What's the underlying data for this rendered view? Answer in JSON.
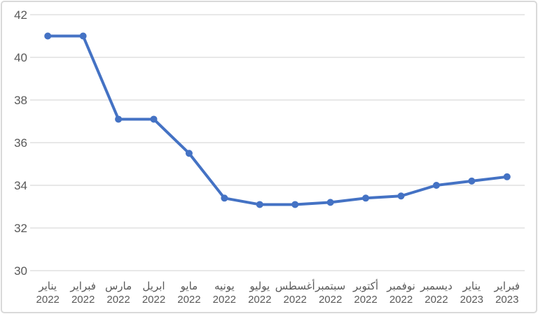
{
  "style": {
    "background": "#FFFFFF",
    "frame_border_color": "#D9D9D9",
    "gridline_color": "#D9D9D9",
    "axis_text_color": "#595959",
    "series_color": "#4472C4"
  },
  "chart_data": {
    "type": "line",
    "title": "",
    "legend": "none",
    "grid": "horizontal",
    "marker": "circle",
    "ylim": [
      30,
      42
    ],
    "y_ticks": [
      42,
      40,
      38,
      36,
      34,
      32,
      30
    ],
    "categories": [
      {
        "month": "يناير",
        "year": "2022"
      },
      {
        "month": "فبراير",
        "year": "2022"
      },
      {
        "month": "مارس",
        "year": "2022"
      },
      {
        "month": "ابريل",
        "year": "2022"
      },
      {
        "month": "مايو",
        "year": "2022"
      },
      {
        "month": "يونيه",
        "year": "2022"
      },
      {
        "month": "يوليو",
        "year": "2022"
      },
      {
        "month": "أغسطس",
        "year": "2022"
      },
      {
        "month": "سبتمبر",
        "year": "2022"
      },
      {
        "month": "أكتوبر",
        "year": "2022"
      },
      {
        "month": "نوفمبر",
        "year": "2022"
      },
      {
        "month": "ديسمبر",
        "year": "2022"
      },
      {
        "month": "يناير",
        "year": "2023"
      },
      {
        "month": "فبراير",
        "year": "2023"
      }
    ],
    "values": [
      41.0,
      41.0,
      37.1,
      37.1,
      35.5,
      33.4,
      33.1,
      33.1,
      33.2,
      33.4,
      33.5,
      34.0,
      34.2,
      34.4
    ]
  }
}
